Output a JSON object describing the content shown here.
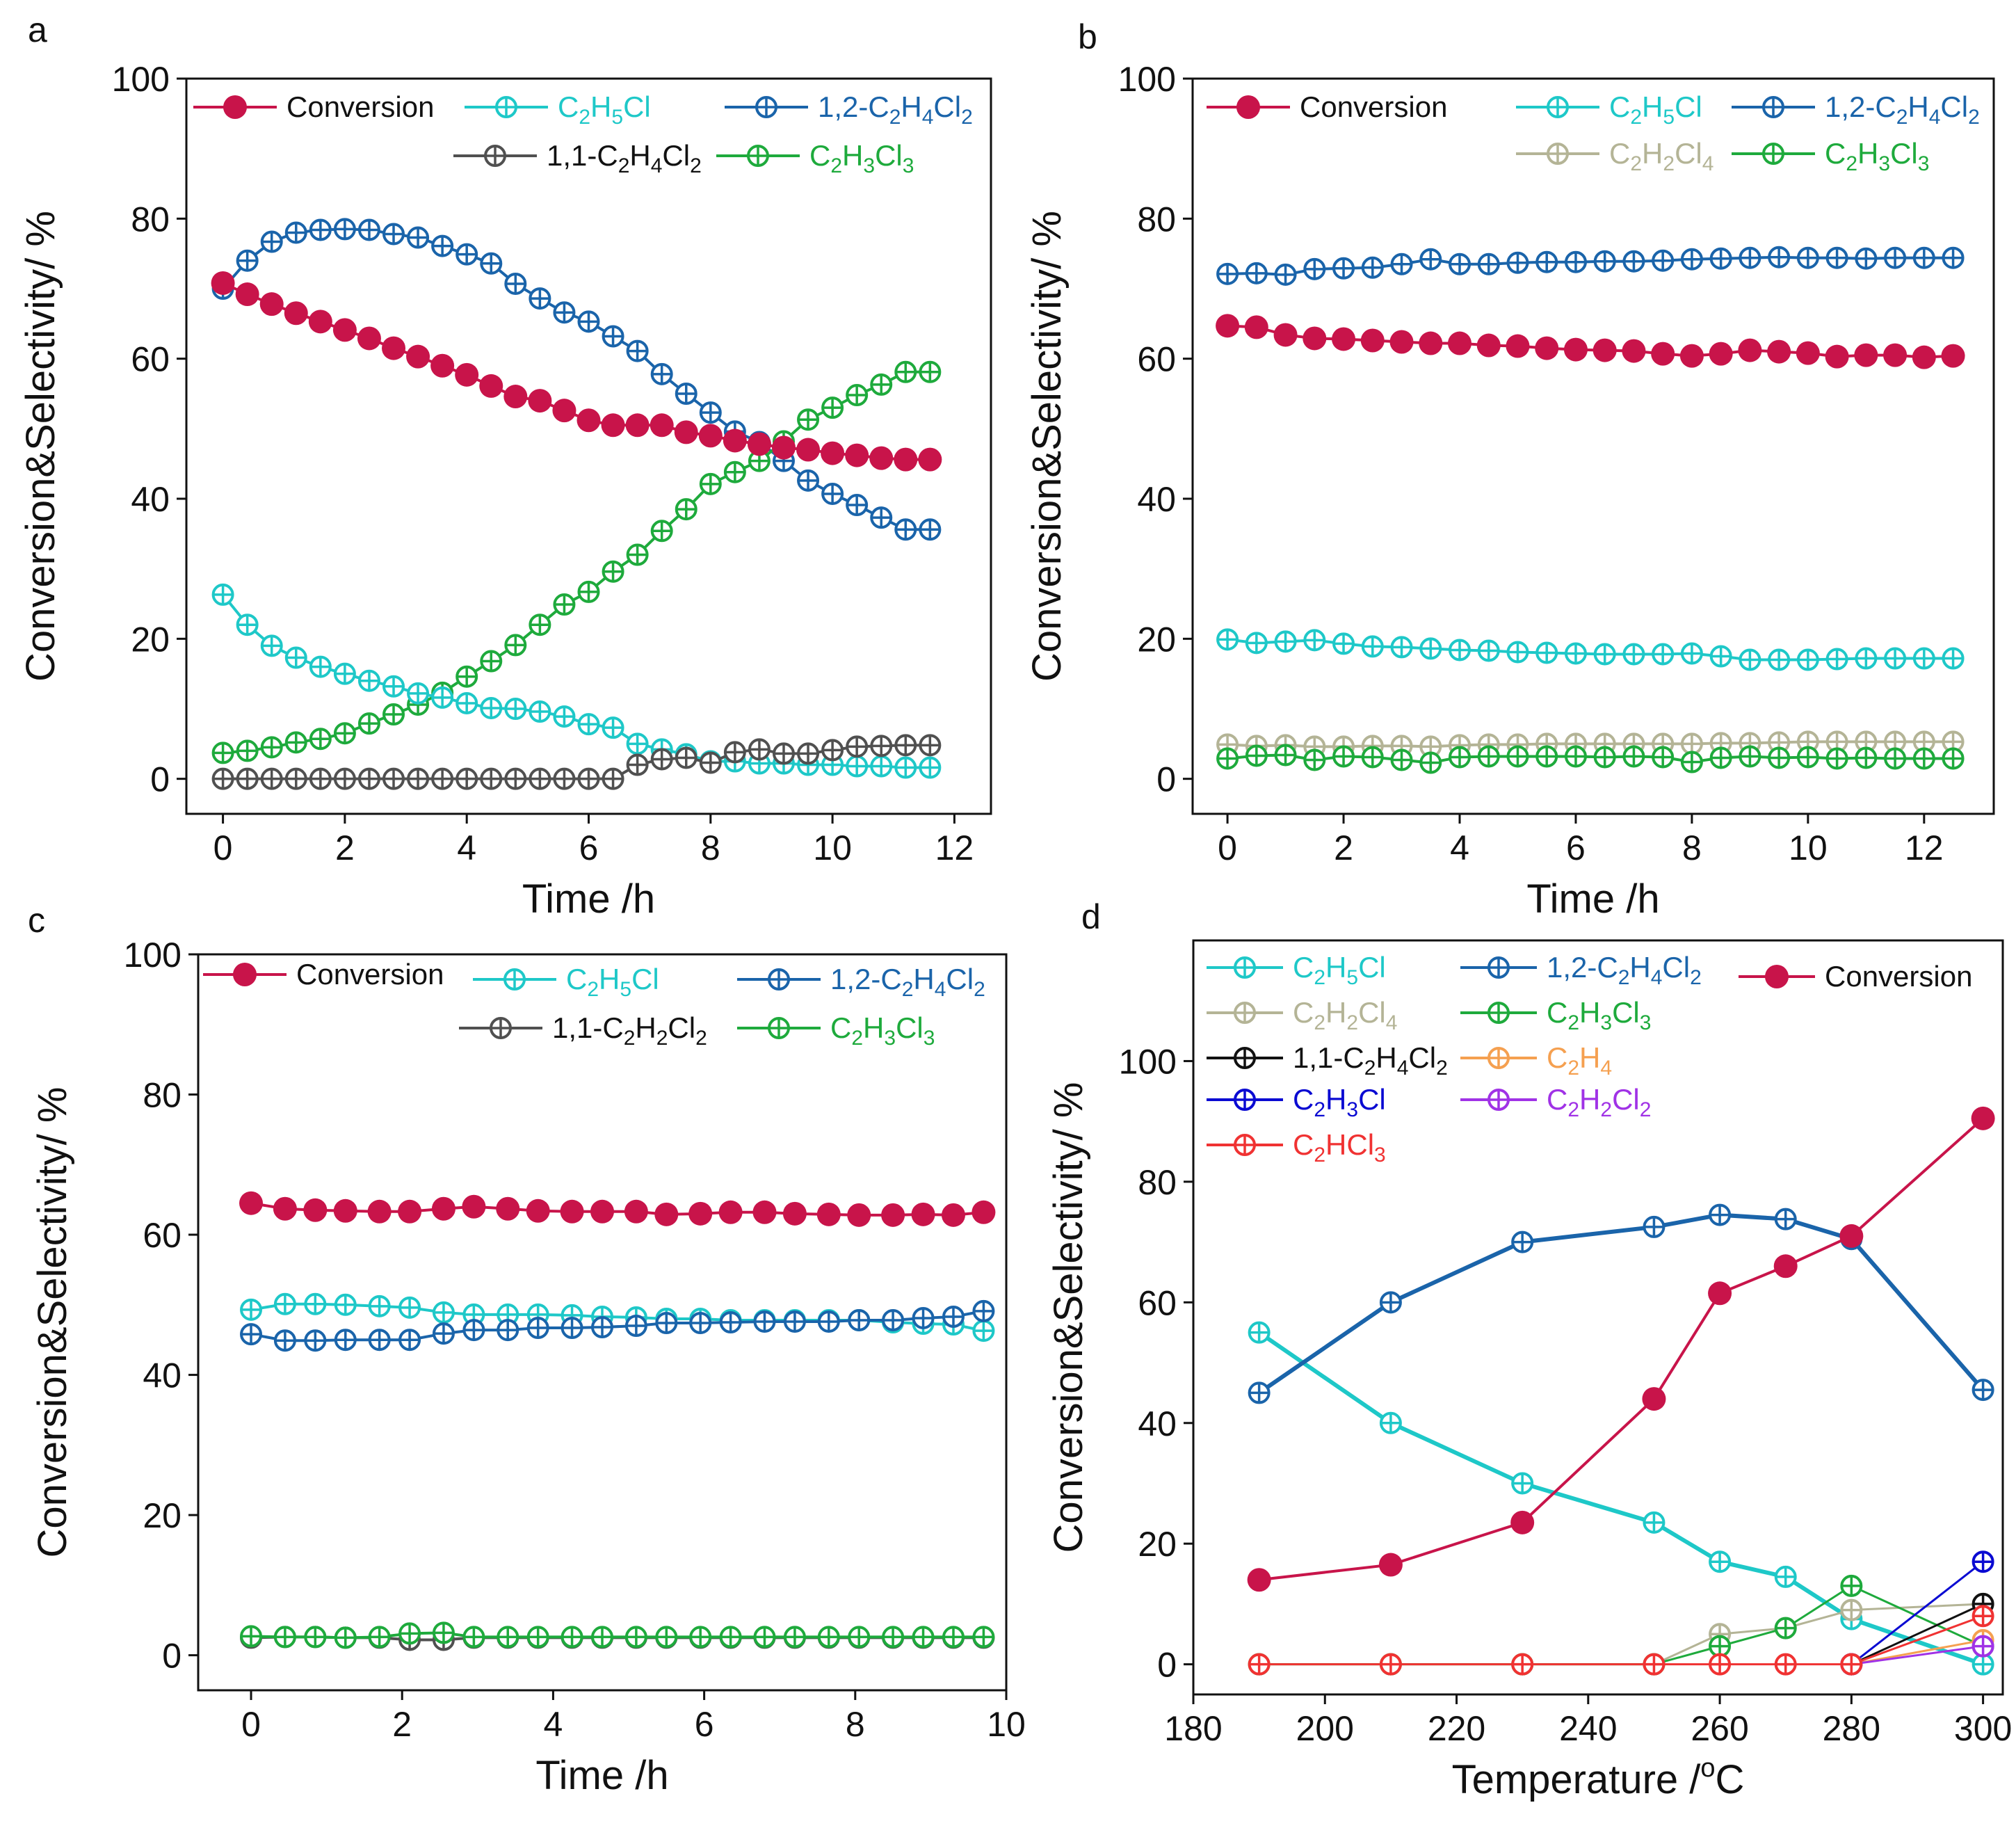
{
  "colors": {
    "conversion": "#c8144a",
    "c2h5cl": "#1ec8c8",
    "c12": "#1a64aa",
    "c11": "#505050",
    "c11_d": "#111111",
    "c2h3cl3": "#1eaa3c",
    "c2h2cl4": "#b4b496",
    "c2h4": "#f5a050",
    "c2h3cl": "#0a0ad2",
    "c2h2cl2": "#a032e6",
    "c2hcl3": "#f03232"
  },
  "chart_data": [
    {
      "panel": "a",
      "type": "line",
      "xlabel": "Time /h",
      "ylabel": "Conversion&Selectivity/ %",
      "xlim": [
        -0.6,
        12.6
      ],
      "ylim": [
        -5,
        100
      ],
      "xticks": [
        0,
        2,
        4,
        6,
        8,
        10,
        12
      ],
      "yticks": [
        0,
        20,
        40,
        60,
        80,
        100
      ],
      "x": [
        0,
        0.4,
        0.8,
        1.2,
        1.6,
        2.0,
        2.4,
        2.8,
        3.2,
        3.6,
        4.0,
        4.4,
        4.8,
        5.2,
        5.6,
        6.0,
        6.4,
        6.8,
        7.2,
        7.6,
        8.0,
        8.4,
        8.8,
        9.2,
        9.6,
        10.0,
        10.4,
        10.8,
        11.2,
        11.6
      ],
      "series": [
        {
          "key": "c12",
          "name": "1,2-C2H4Cl2",
          "sub": [
            "1,2-C",
            "2",
            "H",
            "4",
            "Cl",
            "2"
          ],
          "marker": "crosscircle",
          "values": [
            70,
            74,
            76.7,
            78,
            78.4,
            78.5,
            78.4,
            77.8,
            77.3,
            76.1,
            74.9,
            73.6,
            70.7,
            68.6,
            66.6,
            65.3,
            63.2,
            61.1,
            57.8,
            55,
            52.3,
            49.6,
            48.1,
            45.4,
            42.6,
            40.7,
            39.1,
            37.3,
            35.6,
            35.6
          ]
        },
        {
          "key": "c2h3cl3",
          "name": "C2H3Cl3",
          "sub": [
            "C",
            "2",
            "H",
            "3",
            "Cl",
            "3"
          ],
          "marker": "crosscircle",
          "values": [
            3.7,
            4,
            4.5,
            5.2,
            5.7,
            6.5,
            7.9,
            9.2,
            10.6,
            12.3,
            14.6,
            16.8,
            19.1,
            22,
            24.9,
            26.7,
            29.6,
            32,
            35.4,
            38.5,
            42.1,
            43.8,
            45.4,
            48.2,
            51.3,
            53,
            54.8,
            56.3,
            58.1,
            58.1
          ]
        },
        {
          "key": "c2h5cl",
          "name": "C2H5Cl",
          "sub": [
            "C",
            "2",
            "H",
            "5",
            "Cl"
          ],
          "marker": "crosscircle",
          "values": [
            26.3,
            22,
            19,
            17.3,
            16,
            15,
            14,
            13.2,
            12.2,
            11.6,
            10.8,
            10.1,
            10,
            9.6,
            8.9,
            7.8,
            7.3,
            5,
            4.2,
            3.5,
            2.5,
            2.5,
            2.2,
            2.2,
            2,
            2,
            1.8,
            1.8,
            1.6,
            1.6
          ]
        },
        {
          "key": "c11",
          "name": "1,1-C2H4Cl2",
          "sub": [
            "1,1-C",
            "2",
            "H",
            "4",
            "Cl",
            "2"
          ],
          "marker": "crosscircle",
          "values": [
            0,
            0,
            0,
            0,
            0,
            0,
            0,
            0,
            0,
            0,
            0,
            0,
            0,
            0,
            0,
            0,
            0,
            2,
            2.8,
            3,
            2.3,
            3.8,
            4.2,
            3.6,
            3.6,
            4.1,
            4.6,
            4.7,
            4.8,
            4.8
          ]
        },
        {
          "key": "conversion",
          "name": "Conversion",
          "sub": [
            "Conversion"
          ],
          "marker": "dot",
          "values": [
            70.8,
            69.2,
            67.8,
            66.5,
            65.3,
            64.1,
            62.9,
            61.5,
            60.3,
            59,
            57.7,
            56.1,
            54.6,
            54,
            52.6,
            51.2,
            50.5,
            50.5,
            50.5,
            49.5,
            49,
            48.3,
            47.8,
            47.3,
            47,
            46.5,
            46.2,
            45.8,
            45.6,
            45.6
          ]
        }
      ]
    },
    {
      "panel": "b",
      "type": "line",
      "xlabel": "Time /h",
      "ylabel": "Conversion&Selectivity/ %",
      "xlim": [
        -0.6,
        13.2
      ],
      "ylim": [
        -5,
        100
      ],
      "xticks": [
        0,
        2,
        4,
        6,
        8,
        10,
        12
      ],
      "yticks": [
        0,
        20,
        40,
        60,
        80,
        100
      ],
      "x": [
        0,
        0.5,
        1.0,
        1.5,
        2.0,
        2.5,
        3.0,
        3.5,
        4.0,
        4.5,
        5.0,
        5.5,
        6.0,
        6.5,
        7.0,
        7.5,
        8.0,
        8.5,
        9.0,
        9.5,
        10.0,
        10.5,
        11.0,
        11.5,
        12.0,
        12.5
      ],
      "series": [
        {
          "key": "c12",
          "name": "1,2-C2H4Cl2",
          "sub": [
            "1,2-C",
            "2",
            "H",
            "4",
            "Cl",
            "2"
          ],
          "marker": "crosscircle",
          "values": [
            72.1,
            72.2,
            72,
            72.8,
            72.9,
            73,
            73.5,
            74.2,
            73.5,
            73.5,
            73.7,
            73.8,
            73.8,
            73.9,
            73.9,
            74,
            74.2,
            74.3,
            74.4,
            74.5,
            74.4,
            74.4,
            74.3,
            74.4,
            74.4,
            74.4
          ]
        },
        {
          "key": "conversion",
          "name": "Conversion",
          "sub": [
            "Conversion"
          ],
          "marker": "dot",
          "values": [
            64.7,
            64.5,
            63.4,
            62.9,
            62.8,
            62.6,
            62.4,
            62.2,
            62.2,
            61.9,
            61.8,
            61.5,
            61.3,
            61.2,
            61.1,
            60.7,
            60.4,
            60.7,
            61.2,
            61,
            60.8,
            60.3,
            60.5,
            60.5,
            60.2,
            60.4
          ]
        },
        {
          "key": "c2h5cl",
          "name": "C2H5Cl",
          "sub": [
            "C",
            "2",
            "H",
            "5",
            "Cl"
          ],
          "marker": "crosscircle",
          "values": [
            19.9,
            19.4,
            19.6,
            19.8,
            19.3,
            18.9,
            18.8,
            18.6,
            18.4,
            18.3,
            18.1,
            18,
            17.9,
            17.8,
            17.8,
            17.8,
            17.9,
            17.5,
            17,
            17,
            17,
            17.1,
            17.2,
            17.2,
            17.2,
            17.2
          ]
        },
        {
          "key": "c2h2cl4",
          "name": "C2H2Cl4",
          "sub": [
            "C",
            "2",
            "H",
            "2",
            "Cl",
            "4"
          ],
          "marker": "crosscircle",
          "values": [
            4.9,
            4.7,
            4.8,
            4.6,
            4.6,
            4.7,
            4.7,
            4.6,
            4.8,
            4.9,
            4.9,
            5,
            5,
            5,
            5,
            5,
            5,
            5.1,
            5.1,
            5.2,
            5.3,
            5.3,
            5.3,
            5.3,
            5.3,
            5.3
          ]
        },
        {
          "key": "c2h3cl3",
          "name": "C2H3Cl3",
          "sub": [
            "C",
            "2",
            "H",
            "3",
            "Cl",
            "3"
          ],
          "marker": "crosscircle",
          "values": [
            2.9,
            3.3,
            3.4,
            2.7,
            3.2,
            3.1,
            2.7,
            2.3,
            3.1,
            3.2,
            3.2,
            3.2,
            3.2,
            3.1,
            3.2,
            3.1,
            2.4,
            3,
            3.2,
            3,
            3.1,
            2.9,
            3,
            2.9,
            2.9,
            2.9
          ]
        }
      ]
    },
    {
      "panel": "c",
      "type": "line",
      "xlabel": "Time /h",
      "ylabel": "Conversion&Selectivity/ %",
      "xlim": [
        -0.7,
        10
      ],
      "ylim": [
        -5,
        100
      ],
      "xticks": [
        0,
        2,
        4,
        6,
        8,
        10
      ],
      "yticks": [
        0,
        20,
        40,
        60,
        80,
        100
      ],
      "x": [
        0,
        0.45,
        0.85,
        1.25,
        1.7,
        2.1,
        2.55,
        2.95,
        3.4,
        3.8,
        4.25,
        4.65,
        5.1,
        5.5,
        5.95,
        6.35,
        6.8,
        7.2,
        7.65,
        8.05,
        8.5,
        8.9,
        9.3,
        9.7
      ],
      "series": [
        {
          "key": "c2h5cl",
          "name": "C2H5Cl",
          "sub": [
            "C",
            "2",
            "H",
            "5",
            "Cl"
          ],
          "marker": "crosscircle",
          "values": [
            49.3,
            50.1,
            50.1,
            50,
            49.8,
            49.6,
            48.9,
            48.6,
            48.6,
            48.6,
            48.5,
            48.3,
            48.2,
            48,
            48,
            47.8,
            47.8,
            47.8,
            47.8,
            47.8,
            47.5,
            47.3,
            47.2,
            46.3
          ]
        },
        {
          "key": "c12",
          "name": "1,2-C2H4Cl2",
          "sub": [
            "1,2-C",
            "2",
            "H",
            "4",
            "Cl",
            "2"
          ],
          "marker": "crosscircle",
          "values": [
            45.8,
            44.9,
            44.9,
            45,
            45,
            45,
            45.9,
            46.4,
            46.4,
            46.7,
            46.7,
            46.8,
            47,
            47.4,
            47.4,
            47.5,
            47.6,
            47.6,
            47.6,
            47.8,
            47.8,
            48.1,
            48.3,
            49.1
          ]
        },
        {
          "key": "conversion",
          "name": "Conversion",
          "sub": [
            "Conversion"
          ],
          "marker": "dot",
          "values": [
            64.5,
            63.7,
            63.5,
            63.4,
            63.3,
            63.3,
            63.7,
            64,
            63.7,
            63.4,
            63.3,
            63.3,
            63.3,
            62.9,
            63,
            63.2,
            63.2,
            63,
            62.9,
            62.8,
            62.8,
            62.9,
            62.8,
            63.2
          ]
        },
        {
          "key": "c11",
          "name": "1,1-C2H2Cl2",
          "sub": [
            "1,1-C",
            "2",
            "H",
            "2",
            "Cl",
            "2"
          ],
          "marker": "crosscircle",
          "values": [
            2.5,
            2.6,
            2.6,
            2.5,
            2.5,
            2.2,
            2.2,
            2.5,
            2.5,
            2.5,
            2.5,
            2.5,
            2.5,
            2.5,
            2.5,
            2.5,
            2.5,
            2.5,
            2.5,
            2.5,
            2.5,
            2.5,
            2.5,
            2.5
          ]
        },
        {
          "key": "c2h3cl3",
          "name": "C2H3Cl3",
          "sub": [
            "C",
            "2",
            "H",
            "3",
            "Cl",
            "3"
          ],
          "marker": "crosscircle",
          "values": [
            2.7,
            2.6,
            2.6,
            2.5,
            2.6,
            3.1,
            3.2,
            2.6,
            2.6,
            2.6,
            2.6,
            2.6,
            2.6,
            2.6,
            2.6,
            2.6,
            2.6,
            2.6,
            2.6,
            2.6,
            2.6,
            2.6,
            2.6,
            2.6
          ]
        }
      ]
    },
    {
      "panel": "d",
      "type": "line",
      "xlabel": "Temperature /oC",
      "xlabel_parts": [
        "Temperature /",
        "o",
        "C"
      ],
      "ylabel": "Conversion&Selectivity/ %",
      "xlim": [
        180,
        303
      ],
      "ylim": [
        -5,
        120
      ],
      "xticks": [
        180,
        200,
        220,
        240,
        260,
        280,
        300
      ],
      "yticks": [
        0,
        20,
        40,
        60,
        80,
        100
      ],
      "x": [
        190,
        210,
        230,
        250,
        260,
        270,
        280,
        300
      ],
      "series": [
        {
          "key": "c2h5cl",
          "name": "C2H5Cl",
          "sub": [
            "C",
            "2",
            "H",
            "5",
            "Cl"
          ],
          "marker": "crosscircle",
          "values": [
            55,
            40,
            30,
            23.5,
            17,
            14.5,
            7.5,
            0
          ]
        },
        {
          "key": "c12",
          "name": "1,2-C2H4Cl2",
          "sub": [
            "1,2-C",
            "2",
            "H",
            "4",
            "Cl",
            "2"
          ],
          "marker": "crosscircle",
          "values": [
            45,
            60,
            70,
            72.5,
            74.5,
            73.8,
            70.5,
            45.5
          ]
        },
        {
          "key": "c2h2cl4",
          "name": "C2H2Cl4",
          "sub": [
            "C",
            "2",
            "H",
            "2",
            "Cl",
            "4"
          ],
          "marker": "crosscircle",
          "values": [
            0,
            0,
            0,
            0,
            5,
            6,
            9,
            10
          ]
        },
        {
          "key": "c2h3cl3",
          "name": "C2H3Cl3",
          "sub": [
            "C",
            "2",
            "H",
            "3",
            "Cl",
            "3"
          ],
          "marker": "crosscircle",
          "values": [
            0,
            0,
            0,
            0,
            3,
            6,
            13,
            3
          ]
        },
        {
          "key": "c11_d",
          "name": "1,1-C2H4Cl2",
          "sub": [
            "1,1-C",
            "2",
            "H",
            "4",
            "Cl",
            "2"
          ],
          "marker": "crosscircle",
          "values": [
            null,
            null,
            null,
            null,
            null,
            null,
            0,
            10
          ]
        },
        {
          "key": "c2h4",
          "name": "C2H4",
          "sub": [
            "C",
            "2",
            "H",
            "4"
          ],
          "marker": "crosscircle",
          "values": [
            null,
            null,
            null,
            null,
            null,
            null,
            0,
            4
          ]
        },
        {
          "key": "c2h3cl",
          "name": "C2H3Cl",
          "sub": [
            "C",
            "2",
            "H",
            "3",
            "Cl"
          ],
          "marker": "crosscircle",
          "values": [
            null,
            null,
            null,
            null,
            null,
            null,
            0,
            17
          ]
        },
        {
          "key": "c2h2cl2",
          "name": "C2H2Cl2",
          "sub": [
            "C",
            "2",
            "H",
            "2",
            "Cl",
            "2"
          ],
          "marker": "crosscircle",
          "values": [
            null,
            null,
            null,
            null,
            null,
            null,
            0,
            3
          ]
        },
        {
          "key": "c2hcl3",
          "name": "C2HCl3",
          "sub": [
            "C",
            "2",
            "HCl",
            "3"
          ],
          "marker": "crosscircle",
          "values": [
            0,
            0,
            0,
            0,
            0,
            0,
            0,
            8
          ]
        },
        {
          "key": "conversion",
          "name": "Conversion",
          "sub": [
            "Conversion"
          ],
          "marker": "dot",
          "values": [
            14,
            16.5,
            23.5,
            44,
            61.5,
            66,
            71,
            90.5
          ]
        }
      ]
    }
  ]
}
